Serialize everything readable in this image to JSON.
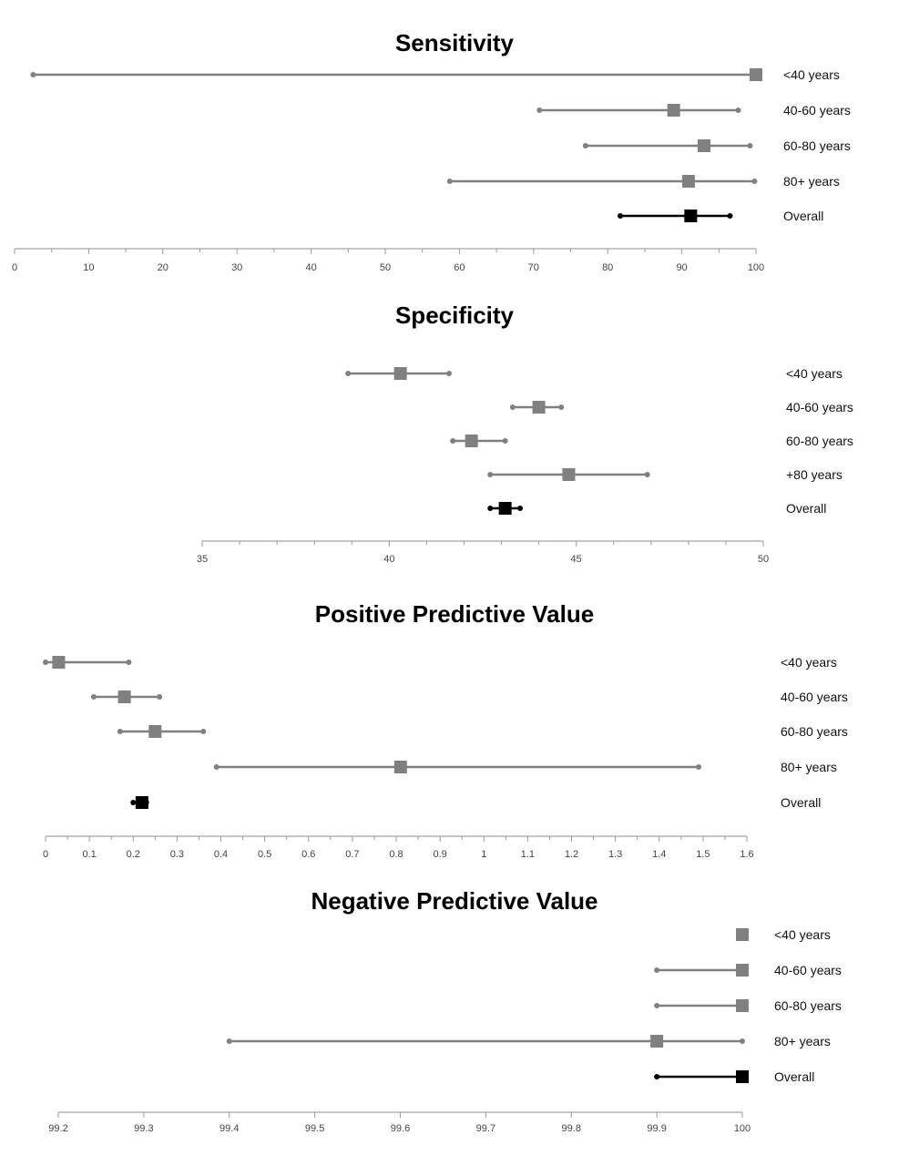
{
  "chart_data": [
    {
      "type": "forest",
      "title": "Sensitivity",
      "xlim": [
        0,
        100
      ],
      "ticks": [
        "0",
        "10",
        "20",
        "30",
        "40",
        "50",
        "60",
        "70",
        "80",
        "90",
        "100"
      ],
      "minor_ticks_per_major": 2,
      "rows": [
        {
          "label": "<40 years",
          "estimate": 100,
          "lower": 2.5,
          "upper": 100,
          "overall": false
        },
        {
          "label": "40-60 years",
          "estimate": 88.9,
          "lower": 70.8,
          "upper": 97.6,
          "overall": false
        },
        {
          "label": "60-80 years",
          "estimate": 93,
          "lower": 77,
          "upper": 99.2,
          "overall": false
        },
        {
          "label": "80+ years",
          "estimate": 90.9,
          "lower": 58.7,
          "upper": 99.8,
          "overall": false
        },
        {
          "label": "Overall",
          "estimate": 91.2,
          "lower": 81.7,
          "upper": 96.5,
          "overall": true
        }
      ]
    },
    {
      "type": "forest",
      "title": "Specificity",
      "xlim": [
        35,
        50
      ],
      "ticks": [
        "35",
        "40",
        "45",
        "50"
      ],
      "minor_ticks_per_major": 5,
      "rows": [
        {
          "label": "<40 years",
          "estimate": 40.3,
          "lower": 38.9,
          "upper": 41.6,
          "overall": false
        },
        {
          "label": "40-60 years",
          "estimate": 44.0,
          "lower": 43.3,
          "upper": 44.6,
          "overall": false
        },
        {
          "label": "60-80 years",
          "estimate": 42.2,
          "lower": 41.7,
          "upper": 43.1,
          "overall": false
        },
        {
          "label": "+80 years",
          "estimate": 44.8,
          "lower": 42.7,
          "upper": 46.9,
          "overall": false
        },
        {
          "label": "Overall",
          "estimate": 43.1,
          "lower": 42.7,
          "upper": 43.5,
          "overall": true
        }
      ]
    },
    {
      "type": "forest",
      "title": "Positive Predictive Value",
      "xlim": [
        0,
        1.6
      ],
      "ticks": [
        "0",
        "0.1",
        "0.2",
        "0.3",
        "0.4",
        "0.5",
        "0.6",
        "0.7",
        "0.8",
        "0.9",
        "1",
        "1.1",
        "1.2",
        "1.3",
        "1.4",
        "1.5",
        "1.6"
      ],
      "minor_ticks_per_major": 2,
      "rows": [
        {
          "label": "<40 years",
          "estimate": 0.03,
          "lower": 0.0,
          "upper": 0.19,
          "overall": false
        },
        {
          "label": "40-60 years",
          "estimate": 0.18,
          "lower": 0.11,
          "upper": 0.26,
          "overall": false
        },
        {
          "label": "60-80 years",
          "estimate": 0.25,
          "lower": 0.17,
          "upper": 0.36,
          "overall": false
        },
        {
          "label": "80+ years",
          "estimate": 0.81,
          "lower": 0.39,
          "upper": 1.49,
          "overall": false
        },
        {
          "label": "Overall",
          "estimate": 0.22,
          "lower": 0.2,
          "upper": 0.23,
          "overall": true
        }
      ]
    },
    {
      "type": "forest",
      "title": "Negative Predictive Value",
      "xlim": [
        99.2,
        100
      ],
      "ticks": [
        "99.2",
        "99.3",
        "99.4",
        "99.5",
        "99.6",
        "99.7",
        "99.8",
        "99.9",
        "100"
      ],
      "minor_ticks_per_major": 1,
      "rows": [
        {
          "label": "<40 years",
          "estimate": 100,
          "lower": 100,
          "upper": 100,
          "overall": false
        },
        {
          "label": "40-60 years",
          "estimate": 100,
          "lower": 99.9,
          "upper": 100,
          "overall": false
        },
        {
          "label": "60-80 years",
          "estimate": 100,
          "lower": 99.9,
          "upper": 100,
          "overall": false
        },
        {
          "label": "80+ years",
          "estimate": 99.9,
          "lower": 99.4,
          "upper": 100,
          "overall": false
        },
        {
          "label": "Overall",
          "estimate": 100,
          "lower": 99.9,
          "upper": 100,
          "overall": true
        }
      ]
    }
  ],
  "colors": {
    "subgroup": "#808080",
    "overall": "#000000",
    "axis": "#b3b3b3"
  }
}
